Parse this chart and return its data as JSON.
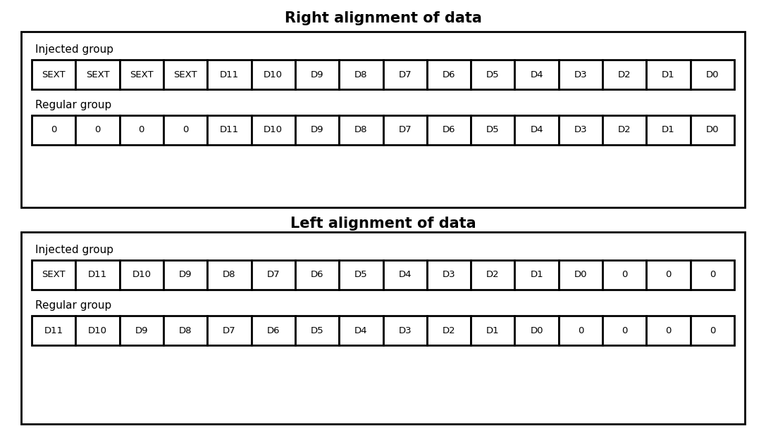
{
  "title_right": "Right alignment of data",
  "title_left": "Left alignment of data",
  "right_injected_label": "Injected group",
  "right_regular_label": "Regular group",
  "left_injected_label": "Injected group",
  "left_regular_label": "Regular group",
  "right_injected_cells": [
    "SEXT",
    "SEXT",
    "SEXT",
    "SEXT",
    "D11",
    "D10",
    "D9",
    "D8",
    "D7",
    "D6",
    "D5",
    "D4",
    "D3",
    "D2",
    "D1",
    "D0"
  ],
  "right_regular_cells": [
    "0",
    "0",
    "0",
    "0",
    "D11",
    "D10",
    "D9",
    "D8",
    "D7",
    "D6",
    "D5",
    "D4",
    "D3",
    "D2",
    "D1",
    "D0"
  ],
  "left_injected_cells": [
    "SEXT",
    "D11",
    "D10",
    "D9",
    "D8",
    "D7",
    "D6",
    "D5",
    "D4",
    "D3",
    "D2",
    "D1",
    "D0",
    "0",
    "0",
    "0"
  ],
  "left_regular_cells": [
    "D11",
    "D10",
    "D9",
    "D8",
    "D7",
    "D6",
    "D5",
    "D4",
    "D3",
    "D2",
    "D1",
    "D0",
    "0",
    "0",
    "0",
    "0"
  ],
  "bg_color": "#ffffff",
  "cell_bg": "#ffffff",
  "cell_border": "#000000",
  "title_fontsize": 15,
  "label_fontsize": 11,
  "cell_fontsize": 9.5,
  "outer_border_color": "#000000",
  "outer_bg": "#ffffff"
}
